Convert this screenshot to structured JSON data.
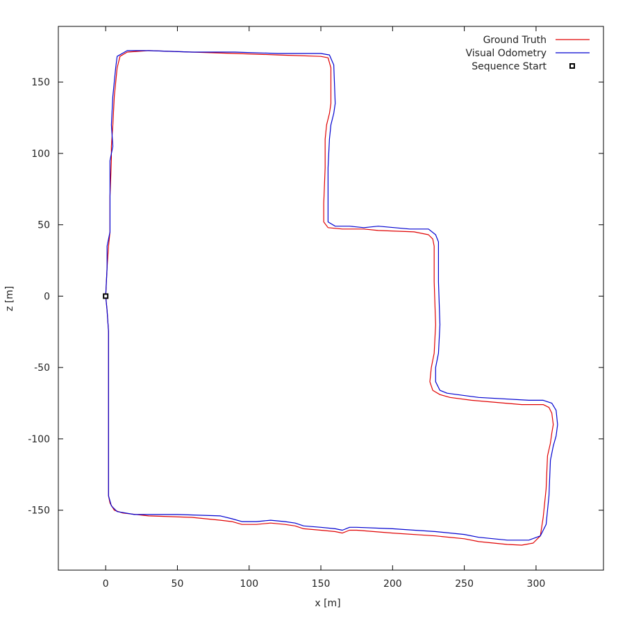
{
  "chart_data": {
    "type": "line",
    "title": "",
    "xlabel": "x [m]",
    "ylabel": "z [m]",
    "xlim": [
      -33,
      347
    ],
    "ylim": [
      -192,
      189
    ],
    "grid": false,
    "legend_position": "top-right",
    "x_ticks": [
      0,
      50,
      100,
      150,
      200,
      250,
      300
    ],
    "y_ticks": [
      150,
      100,
      50,
      0,
      -50,
      -100,
      -150
    ],
    "series": [
      {
        "name": "Ground Truth",
        "color": "#e00000",
        "points": [
          [
            0,
            0
          ],
          [
            1,
            -10
          ],
          [
            2,
            -25
          ],
          [
            2,
            -60
          ],
          [
            2,
            -100
          ],
          [
            2,
            -140
          ],
          [
            3,
            -145
          ],
          [
            6,
            -150
          ],
          [
            12,
            -152
          ],
          [
            30,
            -154
          ],
          [
            60,
            -155
          ],
          [
            80,
            -157
          ],
          [
            88,
            -158
          ],
          [
            95,
            -160
          ],
          [
            105,
            -160
          ],
          [
            115,
            -159
          ],
          [
            125,
            -160
          ],
          [
            132,
            -161
          ],
          [
            138,
            -163
          ],
          [
            150,
            -164
          ],
          [
            160,
            -165
          ],
          [
            165,
            -166
          ],
          [
            170,
            -164
          ],
          [
            175,
            -164
          ],
          [
            200,
            -166
          ],
          [
            230,
            -168
          ],
          [
            250,
            -170
          ],
          [
            260,
            -172
          ],
          [
            280,
            -174
          ],
          [
            290,
            -174.5
          ],
          [
            298,
            -173
          ],
          [
            303,
            -168
          ],
          [
            305,
            -155
          ],
          [
            307,
            -135
          ],
          [
            308,
            -112
          ],
          [
            310,
            -103
          ],
          [
            311,
            -96
          ],
          [
            312,
            -90
          ],
          [
            311,
            -82
          ],
          [
            309,
            -78
          ],
          [
            305,
            -76
          ],
          [
            290,
            -76
          ],
          [
            255,
            -73
          ],
          [
            240,
            -71
          ],
          [
            233,
            -69
          ],
          [
            228,
            -66
          ],
          [
            226,
            -60
          ],
          [
            227,
            -50
          ],
          [
            229,
            -40
          ],
          [
            230,
            -20
          ],
          [
            229,
            10
          ],
          [
            229,
            35
          ],
          [
            228,
            40
          ],
          [
            225,
            43
          ],
          [
            215,
            45
          ],
          [
            190,
            46
          ],
          [
            180,
            47
          ],
          [
            165,
            47
          ],
          [
            155,
            48
          ],
          [
            152,
            52
          ],
          [
            152,
            65
          ],
          [
            153,
            90
          ],
          [
            153,
            110
          ],
          [
            154,
            120
          ],
          [
            156,
            128
          ],
          [
            157,
            135
          ],
          [
            157,
            160
          ],
          [
            155,
            167
          ],
          [
            150,
            168
          ],
          [
            120,
            169
          ],
          [
            90,
            170
          ],
          [
            60,
            171
          ],
          [
            30,
            172
          ],
          [
            15,
            171
          ],
          [
            10,
            168
          ],
          [
            8,
            160
          ],
          [
            6,
            140
          ],
          [
            5,
            120
          ],
          [
            4,
            105
          ],
          [
            4,
            95
          ],
          [
            3,
            70
          ],
          [
            3,
            45
          ],
          [
            2,
            35
          ],
          [
            1,
            20
          ],
          [
            0,
            0
          ]
        ]
      },
      {
        "name": "Visual Odometry",
        "color": "#0000d0",
        "points": [
          [
            0,
            0
          ],
          [
            1,
            -10
          ],
          [
            2,
            -25
          ],
          [
            2,
            -60
          ],
          [
            2,
            -100
          ],
          [
            2,
            -140
          ],
          [
            4,
            -147
          ],
          [
            8,
            -151
          ],
          [
            20,
            -153
          ],
          [
            50,
            -153
          ],
          [
            80,
            -154
          ],
          [
            88,
            -156
          ],
          [
            95,
            -158
          ],
          [
            105,
            -158
          ],
          [
            115,
            -157
          ],
          [
            125,
            -158
          ],
          [
            132,
            -159
          ],
          [
            138,
            -161
          ],
          [
            150,
            -162
          ],
          [
            160,
            -163
          ],
          [
            165,
            -164
          ],
          [
            170,
            -162
          ],
          [
            175,
            -162
          ],
          [
            200,
            -163
          ],
          [
            230,
            -165
          ],
          [
            250,
            -167
          ],
          [
            260,
            -169
          ],
          [
            280,
            -171
          ],
          [
            295,
            -171
          ],
          [
            303,
            -168
          ],
          [
            307,
            -160
          ],
          [
            309,
            -140
          ],
          [
            310,
            -115
          ],
          [
            312,
            -105
          ],
          [
            314,
            -98
          ],
          [
            315,
            -90
          ],
          [
            314,
            -80
          ],
          [
            311,
            -75
          ],
          [
            305,
            -73
          ],
          [
            295,
            -73
          ],
          [
            260,
            -71
          ],
          [
            245,
            -69
          ],
          [
            238,
            -68
          ],
          [
            233,
            -66
          ],
          [
            230,
            -60
          ],
          [
            230,
            -50
          ],
          [
            232,
            -40
          ],
          [
            233,
            -20
          ],
          [
            232,
            10
          ],
          [
            232,
            38
          ],
          [
            230,
            43
          ],
          [
            225,
            47
          ],
          [
            212,
            47
          ],
          [
            190,
            49
          ],
          [
            180,
            48
          ],
          [
            170,
            49
          ],
          [
            160,
            49
          ],
          [
            155,
            52
          ],
          [
            155,
            65
          ],
          [
            155,
            90
          ],
          [
            156,
            110
          ],
          [
            157,
            120
          ],
          [
            159,
            128
          ],
          [
            160,
            135
          ],
          [
            159,
            162
          ],
          [
            156,
            169
          ],
          [
            150,
            170
          ],
          [
            120,
            170
          ],
          [
            90,
            171
          ],
          [
            60,
            171
          ],
          [
            30,
            172
          ],
          [
            15,
            172
          ],
          [
            8,
            168
          ],
          [
            7,
            160
          ],
          [
            5,
            140
          ],
          [
            4,
            120
          ],
          [
            5,
            105
          ],
          [
            3,
            95
          ],
          [
            3,
            70
          ],
          [
            3,
            45
          ],
          [
            1,
            35
          ],
          [
            1,
            20
          ],
          [
            0,
            0
          ]
        ]
      }
    ],
    "markers": [
      {
        "name": "Sequence Start",
        "x": 0,
        "y": 0,
        "shape": "square",
        "color": "#000000"
      }
    ]
  }
}
